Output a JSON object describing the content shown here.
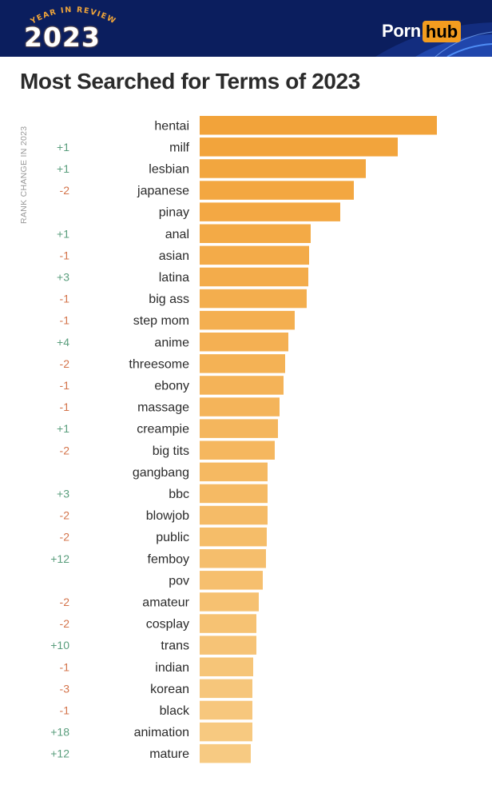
{
  "header": {
    "badge_arc_text": "YEAR IN REVIEW",
    "badge_year": "2023",
    "logo_left": "Porn",
    "logo_right": "hub",
    "colors": {
      "background": "#0b1e5e",
      "accent": "#f39c1f"
    }
  },
  "chart_data": {
    "type": "bar",
    "orientation": "horizontal",
    "title": "Most Searched for Terms of 2023",
    "change_label": "RANK CHANGE IN 2023",
    "categories": [
      "hentai",
      "milf",
      "lesbian",
      "japanese",
      "pinay",
      "anal",
      "asian",
      "latina",
      "big ass",
      "step mom",
      "anime",
      "threesome",
      "ebony",
      "massage",
      "creampie",
      "big tits",
      "gangbang",
      "bbc",
      "blowjob",
      "public",
      "femboy",
      "pov",
      "amateur",
      "cosplay",
      "trans",
      "indian",
      "korean",
      "black",
      "animation",
      "mature"
    ],
    "rank_change": [
      "",
      "+1",
      "+1",
      "-2",
      "",
      "+1",
      "-1",
      "+3",
      "-1",
      "-1",
      "+4",
      "-2",
      "-1",
      "-1",
      "+1",
      "-2",
      "",
      "+3",
      "-2",
      "-2",
      "+12",
      "",
      "-2",
      "-2",
      "+10",
      "-1",
      "-3",
      "-1",
      "+18",
      "+12"
    ],
    "values": [
      297,
      248,
      208,
      193,
      176,
      139,
      137,
      136,
      134,
      119,
      111,
      107,
      105,
      100,
      98,
      94,
      85,
      85,
      85,
      84,
      83,
      79,
      74,
      71,
      71,
      67,
      66,
      66,
      66,
      64
    ],
    "colors": {
      "positive": "#5a9e7d",
      "negative": "#d4744b",
      "bar_dark": "#f2a33a",
      "bar_light": "#f7ca82"
    }
  }
}
